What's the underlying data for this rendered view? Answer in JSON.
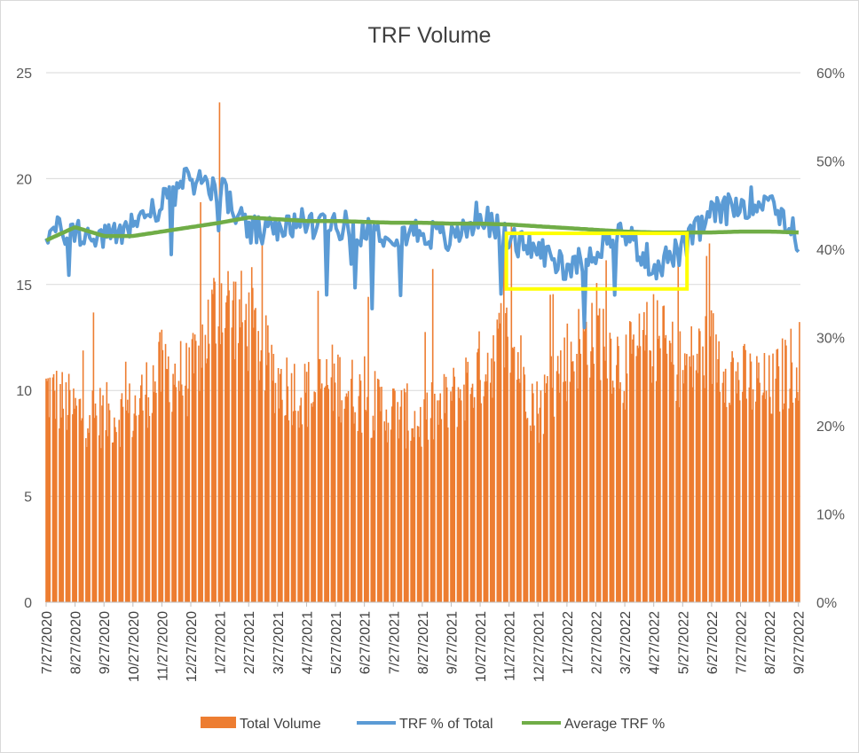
{
  "chart_data": {
    "type": "bar",
    "title": "TRF Volume",
    "x_ticks": [
      "7/27/2020",
      "8/27/2020",
      "9/27/2020",
      "10/27/2020",
      "11/27/2020",
      "12/27/2020",
      "1/27/2021",
      "2/27/2021",
      "3/27/2021",
      "4/27/2021",
      "5/27/2021",
      "6/27/2021",
      "7/27/2021",
      "8/27/2021",
      "9/27/2021",
      "10/27/2021",
      "11/27/2021",
      "12/27/2021",
      "1/27/2022",
      "2/27/2022",
      "3/27/2022",
      "4/27/2022",
      "5/27/2022",
      "6/27/2022",
      "7/27/2022",
      "8/27/2022",
      "9/27/2022"
    ],
    "y_left": {
      "range": [
        0,
        25
      ],
      "ticks": [
        "0",
        "5",
        "10",
        "15",
        "20",
        "25"
      ]
    },
    "y_right": {
      "range": [
        0,
        0.6
      ],
      "ticks": [
        "0%",
        "10%",
        "20%",
        "30%",
        "40%",
        "50%",
        "60%"
      ]
    },
    "grid": true,
    "legend_position": "bottom",
    "series": [
      {
        "name": "Total Volume",
        "type": "bar",
        "axis": "left",
        "color": "#ED7D31",
        "monthly_typical": [
          10.0,
          9.0,
          8.8,
          9.0,
          11.0,
          10.5,
          14.5,
          13.0,
          10.5,
          9.8,
          10.5,
          9.5,
          9.0,
          8.5,
          9.5,
          11.0,
          12.5,
          9.0,
          11.5,
          13.0,
          11.0,
          12.5,
          11.0,
          12.0,
          10.5,
          10.0,
          11.5
        ],
        "peak": 23.6
      },
      {
        "name": "TRF % of Total",
        "type": "line",
        "axis": "right",
        "color": "#5B9BD5",
        "monthly_values": [
          0.42,
          0.42,
          0.41,
          0.43,
          0.45,
          0.48,
          0.47,
          0.42,
          0.42,
          0.43,
          0.43,
          0.42,
          0.42,
          0.42,
          0.41,
          0.44,
          0.41,
          0.4,
          0.38,
          0.4,
          0.42,
          0.38,
          0.4,
          0.44,
          0.45,
          0.46,
          0.41
        ]
      },
      {
        "name": "Average TRF %",
        "type": "line",
        "axis": "right",
        "color": "#70AD47",
        "monthly_values": [
          0.41,
          0.425,
          0.415,
          0.415,
          0.42,
          0.425,
          0.43,
          0.436,
          0.434,
          0.432,
          0.432,
          0.431,
          0.43,
          0.43,
          0.429,
          0.429,
          0.428,
          0.426,
          0.424,
          0.422,
          0.42,
          0.419,
          0.419,
          0.419,
          0.42,
          0.42,
          0.419
        ]
      }
    ],
    "annotation": {
      "type": "highlight-box",
      "color": "#FFFF00",
      "x_from": "11/27/2021",
      "x_to": "6/01/2022"
    }
  }
}
